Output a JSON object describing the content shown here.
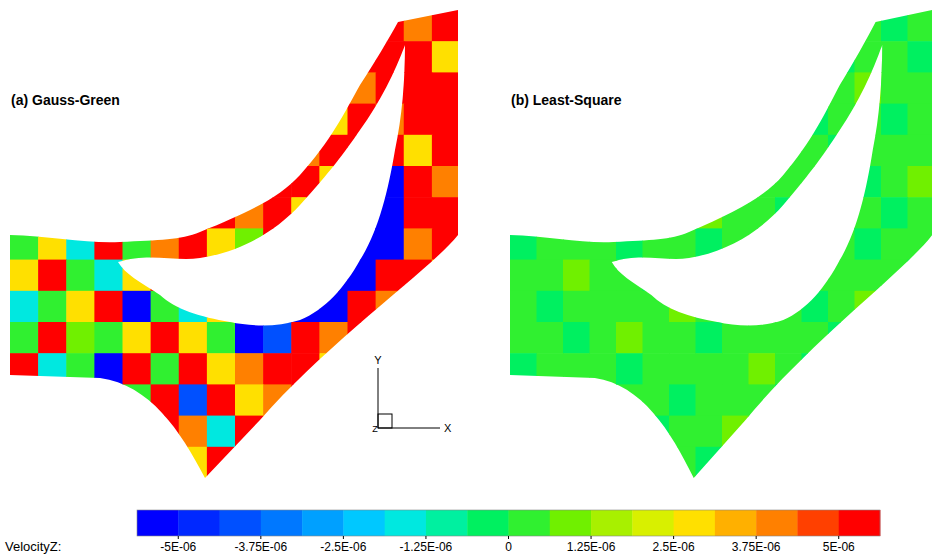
{
  "chart_data": {
    "type": "contour",
    "panels": [
      {
        "title": "(a) Gauss-Green",
        "cells": [
          [
            0,
            0,
            0,
            0,
            0,
            0,
            0,
            0,
            0,
            0,
            0,
            0,
            0,
            5.4e-06,
            4e-06,
            5.4e-06
          ],
          [
            0,
            0,
            0,
            0,
            0,
            0,
            0,
            0,
            0,
            0,
            0,
            0,
            5.4e-06,
            5.4e-06,
            5.4e-06,
            2.6e-06
          ],
          [
            0,
            0,
            0,
            0,
            0,
            0,
            0,
            0,
            0,
            0,
            0,
            5.4e-06,
            4e-06,
            5.4e-06,
            5.4e-06,
            5.4e-06
          ],
          [
            0,
            0,
            0,
            0,
            0,
            0,
            0,
            0,
            0,
            0,
            5.4e-06,
            2.6e-06,
            5.4e-06,
            4e-06,
            5.4e-06,
            5.4e-06
          ],
          [
            0,
            0,
            0,
            0,
            0,
            0,
            0,
            0,
            0,
            5.4e-06,
            4e-06,
            5.4e-06,
            5.4e-06,
            5.4e-06,
            2.6e-06,
            5.4e-06
          ],
          [
            0,
            0,
            0,
            0,
            0,
            0,
            0,
            0,
            5.4e-06,
            5.4e-06,
            5.4e-06,
            2.6e-06,
            4e-06,
            -5.3e-06,
            5.4e-06,
            4e-06
          ],
          [
            0,
            0,
            0,
            0,
            0,
            0,
            2.6e-06,
            5.4e-06,
            4e-06,
            5.4e-06,
            2.6e-06,
            5.4e-06,
            -5.3e-06,
            -5.3e-06,
            5.4e-06,
            5.4e-06
          ],
          [
            3e-07,
            2.6e-06,
            -1.5e-06,
            5.4e-06,
            3e-07,
            4e-06,
            5.4e-06,
            2.6e-06,
            1.2e-06,
            5.4e-06,
            5.4e-06,
            -5.3e-06,
            -5.3e-06,
            -5.3e-06,
            4e-06,
            5.4e-06
          ],
          [
            2.6e-06,
            5.4e-06,
            3e-07,
            -1.5e-06,
            2.6e-06,
            5.4e-06,
            3e-07,
            4e-06,
            2.6e-06,
            5.4e-06,
            -5.3e-06,
            -5.3e-06,
            -5.3e-06,
            5.4e-06,
            5.4e-06,
            2.6e-06
          ],
          [
            -1.5e-06,
            3e-07,
            2.6e-06,
            5.4e-06,
            -5.3e-06,
            3e-07,
            -1.5e-06,
            2.6e-06,
            5.4e-06,
            -5.3e-06,
            -5.3e-06,
            -5.3e-06,
            5.4e-06,
            4e-06,
            5.4e-06,
            5.4e-06
          ],
          [
            3e-07,
            5.4e-06,
            1.2e-06,
            3e-07,
            2.6e-06,
            5.4e-06,
            2.6e-06,
            3e-07,
            -5.3e-06,
            -3.8e-06,
            5.4e-06,
            4e-06,
            5.4e-06,
            2.6e-06,
            5.4e-06,
            0
          ],
          [
            5.4e-06,
            -1.5e-06,
            3e-07,
            -5.3e-06,
            5.4e-06,
            3e-07,
            5.4e-06,
            2.6e-06,
            4e-06,
            5.4e-06,
            5.4e-06,
            2.6e-06,
            5.4e-06,
            0,
            0,
            0
          ],
          [
            3e-07,
            2.6e-06,
            5.4e-06,
            -1.5e-06,
            3e-07,
            5.4e-06,
            -3.8e-06,
            5.4e-06,
            2.6e-06,
            4e-06,
            5.4e-06,
            5.4e-06,
            0,
            0,
            0,
            0
          ],
          [
            0,
            0,
            0,
            0,
            2.6e-06,
            5.4e-06,
            4e-06,
            -1.5e-06,
            5.4e-06,
            2.6e-06,
            0,
            0,
            0,
            0,
            0,
            0
          ],
          [
            0,
            0,
            0,
            0,
            0,
            5.4e-06,
            2.6e-06,
            5.4e-06,
            0,
            0,
            0,
            0,
            0,
            0,
            0,
            0
          ]
        ]
      },
      {
        "title": "(b) Least-Square",
        "cells": [
          [
            3e-07,
            -3e-07,
            3e-07,
            3e-07,
            -3e-07,
            3e-07,
            3e-07,
            -3e-07,
            3e-07,
            3e-07,
            -3e-07,
            3e-07,
            3e-07,
            3e-07,
            -3e-07,
            3e-07
          ],
          [
            -3e-07,
            3e-07,
            3e-07,
            -3e-07,
            3e-07,
            3e-07,
            -3e-07,
            3e-07,
            3e-07,
            -3e-07,
            3e-07,
            3e-07,
            -3e-07,
            3e-07,
            3e-07,
            -3e-07
          ],
          [
            3e-07,
            3e-07,
            -3e-07,
            3e-07,
            3e-07,
            1.2e-06,
            3e-07,
            -3e-07,
            3e-07,
            3e-07,
            -3e-07,
            3e-07,
            3e-07,
            1.2e-06,
            3e-07,
            3e-07
          ],
          [
            3e-07,
            -3e-07,
            3e-07,
            3e-07,
            -3e-07,
            3e-07,
            3e-07,
            3e-07,
            -3e-07,
            3e-07,
            3e-07,
            -3e-07,
            3e-07,
            3e-07,
            -3e-07,
            3e-07
          ],
          [
            -3e-07,
            3e-07,
            3e-07,
            1.2e-06,
            3e-07,
            -3e-07,
            3e-07,
            3e-07,
            3e-07,
            1.2e-06,
            3e-07,
            3e-07,
            -3e-07,
            3e-07,
            3e-07,
            3e-07
          ],
          [
            3e-07,
            3e-07,
            -3e-07,
            3e-07,
            3e-07,
            3e-07,
            -3e-07,
            3e-07,
            -3e-07,
            3e-07,
            3e-07,
            3e-07,
            3e-07,
            -3e-07,
            3e-07,
            1.2e-06
          ],
          [
            3e-07,
            1.2e-06,
            3e-07,
            -3e-07,
            3e-07,
            3e-07,
            3e-07,
            1.2e-06,
            3e-07,
            3e-07,
            -3e-07,
            3e-07,
            3e-07,
            3e-07,
            -3e-07,
            3e-07
          ],
          [
            -3e-07,
            3e-07,
            3e-07,
            3e-07,
            -3e-07,
            3e-07,
            3e-07,
            -3e-07,
            3e-07,
            3e-07,
            3e-07,
            1.2e-06,
            3e-07,
            -3e-07,
            3e-07,
            3e-07
          ],
          [
            3e-07,
            3e-07,
            1.2e-06,
            3e-07,
            3e-07,
            -3e-07,
            3e-07,
            3e-07,
            3e-07,
            -3e-07,
            3e-07,
            3e-07,
            3e-07,
            3e-07,
            3e-07,
            -3e-07
          ],
          [
            3e-07,
            -3e-07,
            3e-07,
            3e-07,
            3e-07,
            3e-07,
            1.2e-06,
            3e-07,
            -3e-07,
            3e-07,
            3e-07,
            -3e-07,
            3e-07,
            1.2e-06,
            3e-07,
            3e-07
          ],
          [
            3e-07,
            3e-07,
            -3e-07,
            3e-07,
            1.2e-06,
            3e-07,
            3e-07,
            -3e-07,
            3e-07,
            3e-07,
            3e-07,
            3e-07,
            -3e-07,
            3e-07,
            3e-07,
            3e-07
          ],
          [
            -3e-07,
            3e-07,
            3e-07,
            3e-07,
            -3e-07,
            3e-07,
            3e-07,
            3e-07,
            3e-07,
            1.2e-06,
            3e-07,
            -3e-07,
            3e-07,
            3e-07,
            -3e-07,
            3e-07
          ],
          [
            3e-07,
            3e-07,
            3e-07,
            -3e-07,
            3e-07,
            3e-07,
            -3e-07,
            3e-07,
            3e-07,
            3e-07,
            -3e-07,
            3e-07,
            3e-07,
            3e-07,
            3e-07,
            3e-07
          ],
          [
            3e-07,
            1.2e-06,
            3e-07,
            3e-07,
            3e-07,
            -3e-07,
            3e-07,
            3e-07,
            1.2e-06,
            3e-07,
            3e-07,
            3e-07,
            3e-07,
            -3e-07,
            3e-07,
            3e-07
          ],
          [
            3e-07,
            3e-07,
            -3e-07,
            3e-07,
            3e-07,
            3e-07,
            3e-07,
            -3e-07,
            3e-07,
            3e-07,
            3e-07,
            3e-07,
            3e-07,
            3e-07,
            3e-07,
            3e-07
          ]
        ]
      }
    ],
    "axes_triad": [
      "X",
      "Y",
      "Z"
    ],
    "colorbar": {
      "label": "VelocityZ:",
      "range": [
        -5.625e-06,
        5.625e-06
      ],
      "levels": [
        -5.625e-06,
        -5e-06,
        -4.375e-06,
        -3.75e-06,
        -3.125e-06,
        -2.5e-06,
        -1.875e-06,
        -1.25e-06,
        -6.25e-07,
        0,
        6.25e-07,
        1.25e-06,
        1.875e-06,
        2.5e-06,
        3.125e-06,
        3.75e-06,
        4.375e-06,
        5e-06,
        5.625e-06
      ],
      "colors": [
        "#0000ff",
        "#0028ff",
        "#0050ff",
        "#0078ff",
        "#00a0ff",
        "#00c8ff",
        "#00e8e0",
        "#00f0a0",
        "#00f060",
        "#30f030",
        "#70f000",
        "#a8f000",
        "#d8f000",
        "#ffe000",
        "#ffb000",
        "#ff8000",
        "#ff4000",
        "#ff0000"
      ],
      "ticks": [
        {
          "value": -5e-06,
          "label": "-5E-06"
        },
        {
          "value": -3.75e-06,
          "label": "-3.75E-06"
        },
        {
          "value": -2.5e-06,
          "label": "-2.5E-06"
        },
        {
          "value": -1.25e-06,
          "label": "-1.25E-06"
        },
        0,
        {
          "value": 1.25e-06,
          "label": "1.25E-06"
        },
        {
          "value": 2.5e-06,
          "label": "2.5E-06"
        },
        {
          "value": 3.75e-06,
          "label": "3.75E-06"
        },
        {
          "value": 5e-06,
          "label": "5E-06"
        }
      ]
    }
  }
}
